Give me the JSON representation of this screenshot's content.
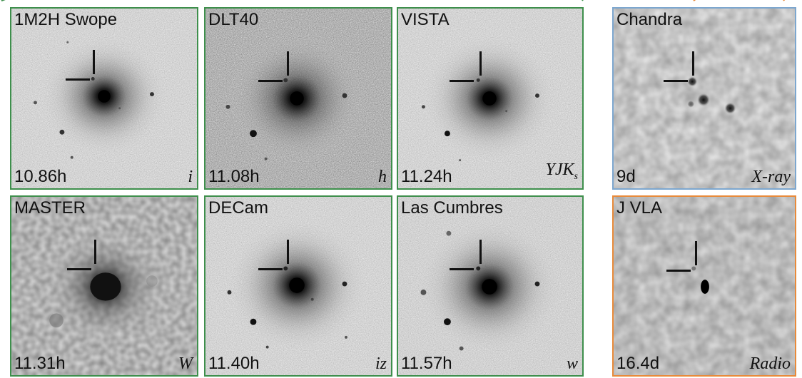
{
  "panels": [
    {
      "label": "1M2H Swope",
      "time": "10.86h",
      "band": "i"
    },
    {
      "label": "DLT40",
      "time": "11.08h",
      "band": "h"
    },
    {
      "label": "VISTA",
      "time": "11.24h",
      "band": "YJK",
      "band_sub": "s"
    },
    {
      "label": "Chandra",
      "time": "9d",
      "band": "X-ray"
    },
    {
      "label": "MASTER",
      "time": "11.31h",
      "band": "W"
    },
    {
      "label": "DECam",
      "time": "11.40h",
      "band": "iz"
    },
    {
      "label": "Las Cumbres",
      "time": "11.57h",
      "band": "w"
    },
    {
      "label": "J VLA",
      "time": "16.4d",
      "band": "Radio"
    }
  ],
  "colors": {
    "optical_frame": "#3e8f4c",
    "xray_frame": "#7da7cf",
    "radio_frame": "#e88a3a"
  }
}
